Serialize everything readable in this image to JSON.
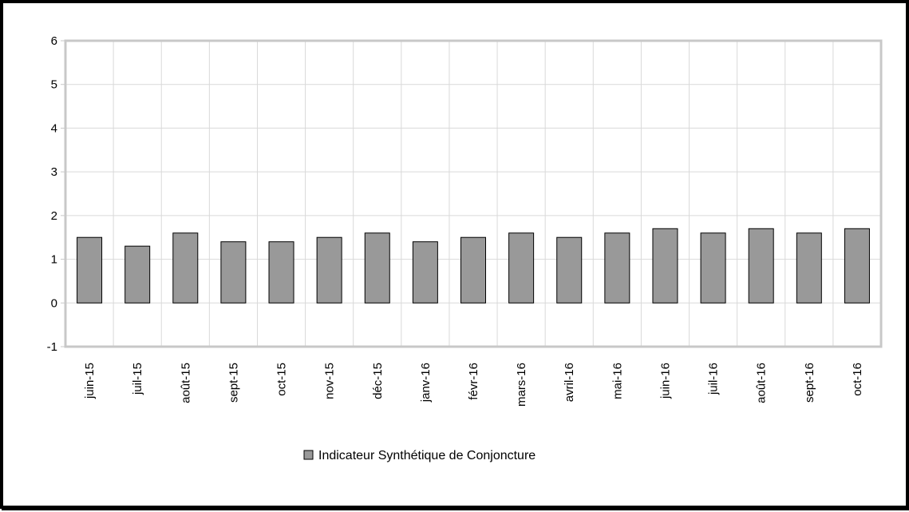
{
  "chart_data": {
    "type": "bar",
    "categories": [
      "juin-15",
      "juil-15",
      "août-15",
      "sept-15",
      "oct-15",
      "nov-15",
      "déc-15",
      "janv-16",
      "févr-16",
      "mars-16",
      "avril-16",
      "mai-16",
      "juin-16",
      "juil-16",
      "août-16",
      "sept-16",
      "oct-16"
    ],
    "series": [
      {
        "name": "Indicateur Synthétique de Conjoncture",
        "values": [
          1.5,
          1.3,
          1.6,
          1.4,
          1.4,
          1.5,
          1.6,
          1.4,
          1.5,
          1.6,
          1.5,
          1.6,
          1.7,
          1.6,
          1.7,
          1.6,
          1.7
        ],
        "color": "#999999"
      }
    ],
    "ylim": [
      -1,
      6
    ],
    "yticks": [
      "-1",
      "0",
      "1",
      "2",
      "3",
      "4",
      "5",
      "6"
    ],
    "grid": true,
    "legend_position": "bottom-center",
    "xlabel": "",
    "ylabel": "",
    "title": ""
  }
}
